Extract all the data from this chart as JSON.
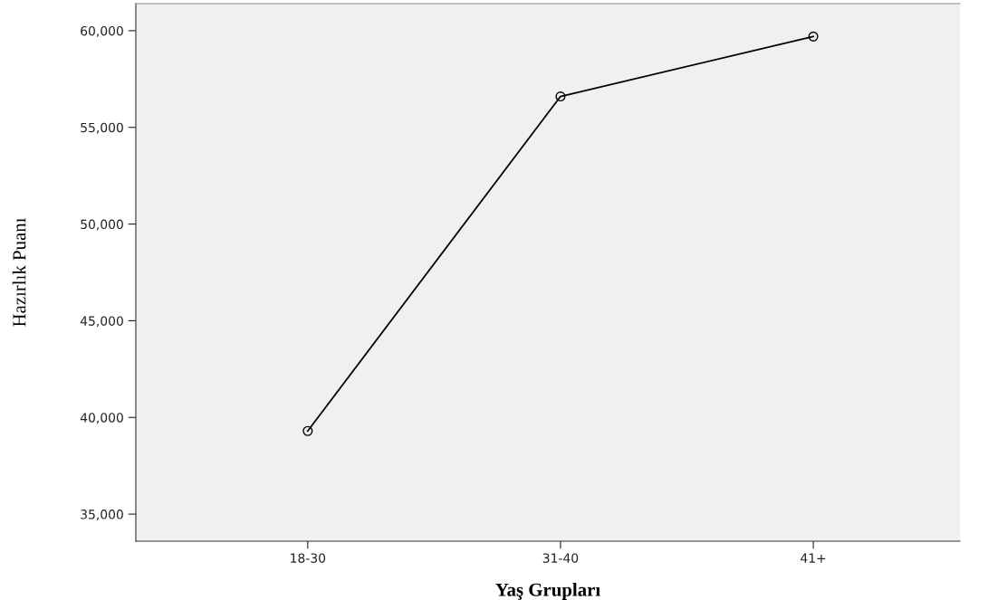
{
  "chart_data": {
    "type": "line",
    "xlabel": "Yaş Grupları",
    "ylabel": "Hazırlık Puanı",
    "categories": [
      "18-30",
      "31-40",
      "41+"
    ],
    "series": [
      {
        "color": "#000000",
        "values": [
          39300,
          56600,
          59700
        ]
      }
    ],
    "ylim": [
      33600,
      61400
    ],
    "yticks": [
      {
        "value": 35000,
        "label": "35,000"
      },
      {
        "value": 40000,
        "label": "40,000"
      },
      {
        "value": 45000,
        "label": "45,000"
      },
      {
        "value": 50000,
        "label": "50,000"
      },
      {
        "value": 55000,
        "label": "55,000"
      },
      {
        "value": 60000,
        "label": "60,000"
      }
    ],
    "marker": "circle",
    "line_style": "solid",
    "grid": false,
    "legend": false
  }
}
